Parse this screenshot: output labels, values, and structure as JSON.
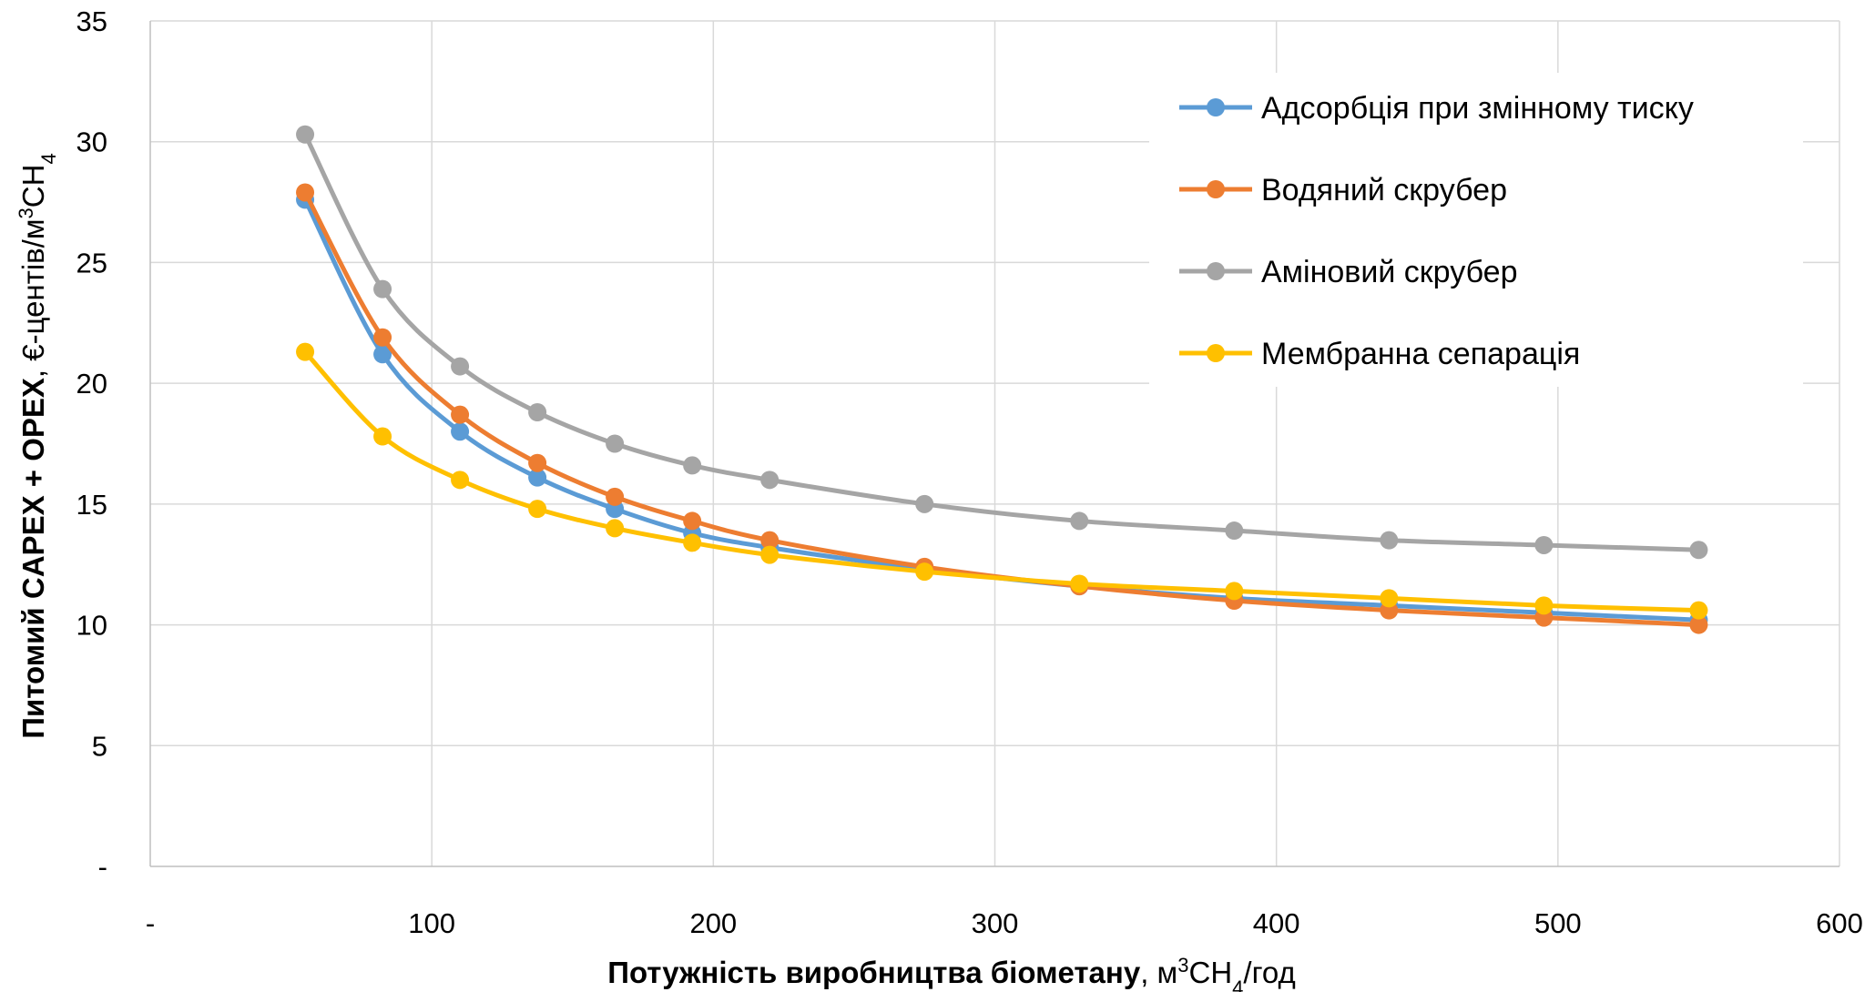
{
  "chart_data": {
    "type": "line",
    "xlabel": {
      "bold": "Потужність виробництва біометану",
      "sep": ", ",
      "unit_a": "м",
      "unit_sup": "3",
      "unit_b": "CH",
      "unit_sub": "4",
      "unit_c": "/год"
    },
    "ylabel": {
      "bold": "Питомий CAPEX + OPEX",
      "sep": ", ",
      "unit_a": "€-центів/м",
      "unit_sup": "3",
      "unit_b": "CH",
      "unit_sub": "4"
    },
    "xlim": [
      0,
      600
    ],
    "ylim": [
      0,
      35
    ],
    "x_ticks": [
      {
        "value": 0,
        "label": "-"
      },
      {
        "value": 100,
        "label": "100"
      },
      {
        "value": 200,
        "label": "200"
      },
      {
        "value": 300,
        "label": "300"
      },
      {
        "value": 400,
        "label": "400"
      },
      {
        "value": 500,
        "label": "500"
      },
      {
        "value": 600,
        "label": "600"
      }
    ],
    "y_ticks": [
      {
        "value": 0,
        "label": "-"
      },
      {
        "value": 5,
        "label": "5"
      },
      {
        "value": 10,
        "label": "10"
      },
      {
        "value": 15,
        "label": "15"
      },
      {
        "value": 20,
        "label": "20"
      },
      {
        "value": 25,
        "label": "25"
      },
      {
        "value": 30,
        "label": "30"
      },
      {
        "value": 35,
        "label": "35"
      }
    ],
    "grid": true,
    "legend_position": "top-right",
    "x": [
      55,
      82.5,
      110,
      137.5,
      165,
      192.5,
      220,
      275,
      330,
      385,
      440,
      495,
      550
    ],
    "series": [
      {
        "name": "Адсорбція при змінному тиску",
        "color": "#5B9BD5",
        "values": [
          27.6,
          21.2,
          18.0,
          16.1,
          14.8,
          13.8,
          13.2,
          12.3,
          11.6,
          11.1,
          10.8,
          10.5,
          10.2
        ]
      },
      {
        "name": "Водяний скрубер",
        "color": "#ED7D31",
        "values": [
          27.9,
          21.9,
          18.7,
          16.7,
          15.3,
          14.3,
          13.5,
          12.4,
          11.6,
          11.0,
          10.6,
          10.3,
          10.0
        ]
      },
      {
        "name": "Аміновий скрубер",
        "color": "#A5A5A5",
        "values": [
          30.3,
          23.9,
          20.7,
          18.8,
          17.5,
          16.6,
          16.0,
          15.0,
          14.3,
          13.9,
          13.5,
          13.3,
          13.1
        ]
      },
      {
        "name": "Мембранна сепарація",
        "color": "#FFC000",
        "values": [
          21.3,
          17.8,
          16.0,
          14.8,
          14.0,
          13.4,
          12.9,
          12.2,
          11.7,
          11.4,
          11.1,
          10.8,
          10.6
        ]
      }
    ]
  }
}
